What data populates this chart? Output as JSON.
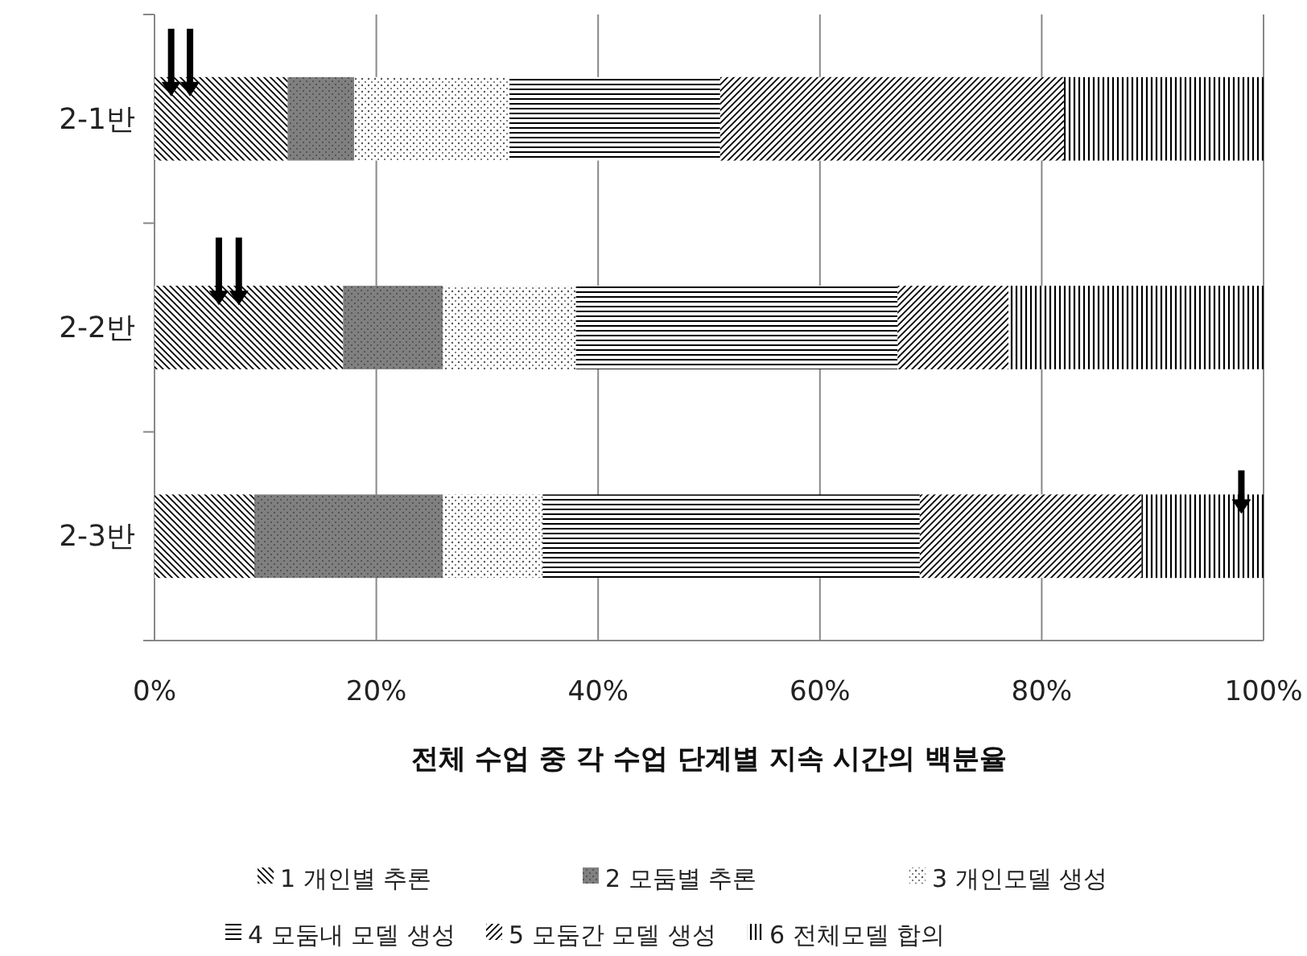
{
  "chart_data": {
    "type": "bar",
    "orientation": "horizontal",
    "stacked": true,
    "xlabel": "전체 수업 중 각 수업 단계별  지속 시간의 백분율",
    "categories": [
      "2-1반",
      "2-2반",
      "2-3반"
    ],
    "series": [
      {
        "name": "1 개인별 추론",
        "color": "#000000",
        "values": [
          12,
          17,
          9
        ]
      },
      {
        "name": "2 모둠별 추론",
        "color": "#808080",
        "values": [
          6,
          9,
          17
        ]
      },
      {
        "name": "3 개인모델 생성",
        "color": "#555555",
        "values": [
          14,
          12,
          9
        ]
      },
      {
        "name": "4 모둠내 모델 생성",
        "color": "#000000",
        "values": [
          19,
          29,
          34
        ]
      },
      {
        "name": "5 모둠간 모델 생성",
        "color": "#000000",
        "values": [
          31,
          10,
          20
        ]
      },
      {
        "name": "6 전체모델 합의",
        "color": "#000000",
        "values": [
          18,
          23,
          11
        ]
      }
    ],
    "xlim": [
      0,
      100
    ],
    "xticks": [
      {
        "value": 0,
        "label": "0%"
      },
      {
        "value": 20,
        "label": "20%"
      },
      {
        "value": 40,
        "label": "40%"
      },
      {
        "value": 60,
        "label": "60%"
      },
      {
        "value": 80,
        "label": "80%"
      },
      {
        "value": 100,
        "label": "100%"
      }
    ],
    "grid": "x",
    "legend": "bottom"
  }
}
